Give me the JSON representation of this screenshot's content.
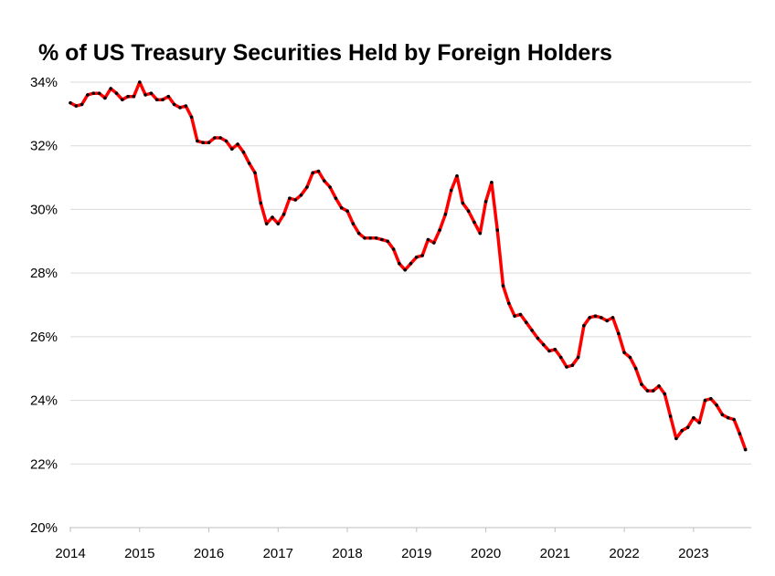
{
  "chart_data": {
    "type": "line",
    "title": "% of US Treasury Securities Held by Foreign Holders",
    "xlabel": "",
    "ylabel": "",
    "x_start": "2014-01",
    "x_ticks": [
      "2014",
      "2015",
      "2016",
      "2017",
      "2018",
      "2019",
      "2020",
      "2021",
      "2022",
      "2023"
    ],
    "y_ticks": [
      "20%",
      "22%",
      "24%",
      "26%",
      "28%",
      "30%",
      "32%",
      "34%"
    ],
    "ylim": [
      20,
      34
    ],
    "grid": "horizontal",
    "legend": "none",
    "series": [
      {
        "color": "#ff0000",
        "marker_color": "#000000",
        "values": [
          33.35,
          33.25,
          33.3,
          33.6,
          33.65,
          33.65,
          33.5,
          33.8,
          33.65,
          33.45,
          33.55,
          33.55,
          34.0,
          33.6,
          33.65,
          33.45,
          33.45,
          33.55,
          33.3,
          33.2,
          33.25,
          32.9,
          32.15,
          32.1,
          32.1,
          32.25,
          32.25,
          32.15,
          31.9,
          32.05,
          31.8,
          31.45,
          31.15,
          30.2,
          29.55,
          29.75,
          29.55,
          29.85,
          30.35,
          30.3,
          30.45,
          30.7,
          31.15,
          31.2,
          30.9,
          30.7,
          30.35,
          30.05,
          29.95,
          29.55,
          29.25,
          29.1,
          29.1,
          29.1,
          29.05,
          29.0,
          28.75,
          28.3,
          28.1,
          28.3,
          28.5,
          28.55,
          29.05,
          28.95,
          29.35,
          29.85,
          30.6,
          31.05,
          30.2,
          29.95,
          29.6,
          29.25,
          30.25,
          30.85,
          29.35,
          27.6,
          27.05,
          26.65,
          26.7,
          26.45,
          26.2,
          25.95,
          25.75,
          25.55,
          25.6,
          25.35,
          25.05,
          25.1,
          25.35,
          26.35,
          26.6,
          26.65,
          26.6,
          26.5,
          26.6,
          26.1,
          25.5,
          25.35,
          25.0,
          24.5,
          24.3,
          24.3,
          24.45,
          24.2,
          23.5,
          22.8,
          23.05,
          23.15,
          23.45,
          23.3,
          24.0,
          24.05,
          23.85,
          23.55,
          23.45,
          23.4,
          22.95,
          22.45
        ]
      }
    ]
  }
}
